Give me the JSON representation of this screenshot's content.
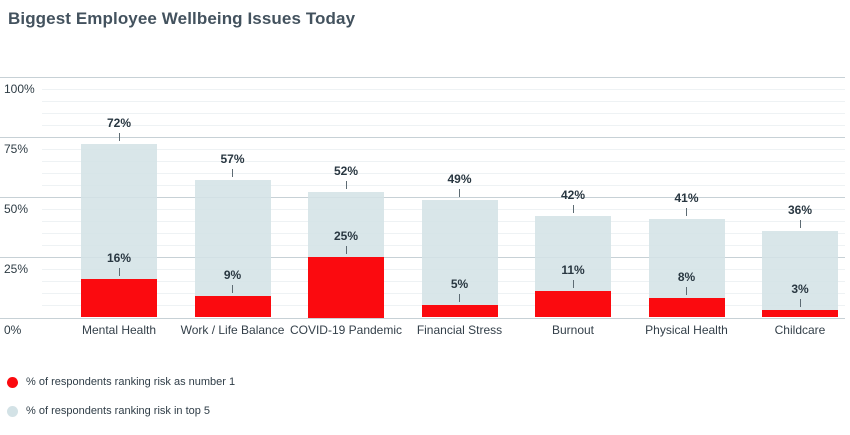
{
  "chart_data": {
    "type": "bar",
    "title": "Biggest Employee Wellbeing Issues Today",
    "categories": [
      "Mental Health",
      "Work / Life Balance",
      "COVID-19 Pandemic",
      "Financial Stress",
      "Burnout",
      "Physical Health",
      "Childcare"
    ],
    "series": [
      {
        "name": "% of respondents ranking risk as number 1",
        "color": "#fb0a0f",
        "values": [
          16,
          9,
          25,
          5,
          11,
          8,
          3
        ]
      },
      {
        "name": "% of respondents ranking risk in top 5",
        "color": "#d3e2e6",
        "values": [
          72,
          57,
          52,
          49,
          42,
          41,
          36
        ]
      }
    ],
    "ylim": [
      0,
      100
    ],
    "yticks": [
      "0%",
      "25%",
      "50%",
      "75%",
      "100%"
    ],
    "ytick_values": [
      0,
      25,
      50,
      75,
      100
    ],
    "minor_grid_step": 5,
    "grid": "on",
    "value_label_suffix": "%",
    "bar_style": "overlaid",
    "legend_position": "bottom-left"
  }
}
